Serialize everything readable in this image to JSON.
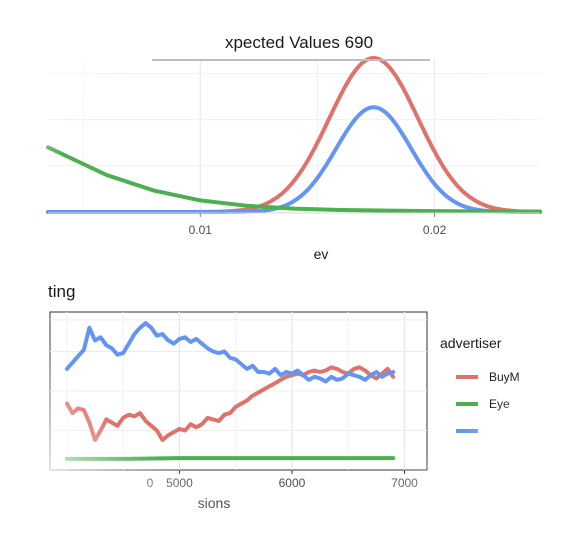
{
  "chart_data": [
    {
      "type": "line",
      "title": "xpected Values 690",
      "xlabel": "ev",
      "ylabel": "",
      "xlim": [
        0.0035,
        0.0245
      ],
      "x_ticks": [
        0.01,
        0.02
      ],
      "x_tick_labels": [
        "0.01",
        "0.02"
      ],
      "grid": true,
      "legend": "none",
      "series": [
        {
          "color": "#E0726C",
          "curve": "normal",
          "mean": 0.0174,
          "sd": 0.0019,
          "peak": 1.0
        },
        {
          "color": "#6495F5",
          "curve": "normal",
          "mean": 0.0174,
          "sd": 0.0016,
          "peak": 0.68
        },
        {
          "color": "#4CAF50",
          "curve": "exponential",
          "x": [
            0.0035,
            0.006,
            0.008,
            0.01,
            0.012,
            0.014,
            0.016,
            0.018,
            0.02,
            0.022,
            0.0245
          ],
          "y": [
            0.42,
            0.24,
            0.14,
            0.075,
            0.04,
            0.022,
            0.013,
            0.009,
            0.006,
            0.004,
            0.003
          ]
        }
      ]
    },
    {
      "type": "line",
      "title": "ting",
      "xlabel": "sions",
      "ylabel": "",
      "xlim": [
        3850,
        7200
      ],
      "ylim": [
        0,
        1
      ],
      "x_ticks": [
        5000,
        6000,
        7000
      ],
      "x_tick_labels": [
        "5000",
        "6000",
        "7000"
      ],
      "partial_tick_label": "0",
      "grid": true,
      "legend": "right",
      "legend_title": "advertiser",
      "series": [
        {
          "name": "BuyM",
          "color": "#E0726C",
          "x": [
            4000,
            4050,
            4100,
            4150,
            4200,
            4250,
            4300,
            4350,
            4400,
            4450,
            4500,
            4550,
            4600,
            4650,
            4700,
            4750,
            4800,
            4850,
            4900,
            4950,
            5000,
            5050,
            5100,
            5150,
            5200,
            5250,
            5300,
            5350,
            5400,
            5450,
            5500,
            5550,
            5600,
            5650,
            5700,
            5750,
            5800,
            5850,
            5900,
            5950,
            6000,
            6050,
            6100,
            6150,
            6200,
            6250,
            6300,
            6350,
            6400,
            6450,
            6500,
            6550,
            6600,
            6650,
            6700,
            6750,
            6800,
            6850,
            6900
          ],
          "y": [
            0.42,
            0.36,
            0.39,
            0.38,
            0.3,
            0.19,
            0.25,
            0.32,
            0.3,
            0.28,
            0.33,
            0.35,
            0.34,
            0.36,
            0.31,
            0.28,
            0.25,
            0.19,
            0.22,
            0.24,
            0.26,
            0.25,
            0.29,
            0.27,
            0.29,
            0.33,
            0.32,
            0.31,
            0.35,
            0.36,
            0.4,
            0.42,
            0.44,
            0.47,
            0.49,
            0.51,
            0.53,
            0.55,
            0.57,
            0.59,
            0.6,
            0.61,
            0.6,
            0.62,
            0.63,
            0.62,
            0.63,
            0.65,
            0.64,
            0.62,
            0.61,
            0.64,
            0.65,
            0.63,
            0.6,
            0.58,
            0.61,
            0.64,
            0.59
          ]
        },
        {
          "name": "Eye",
          "color": "#4CAF50",
          "x": [
            4000,
            4500,
            5000,
            5500,
            6000,
            6500,
            6900
          ],
          "y": [
            0.07,
            0.07,
            0.075,
            0.075,
            0.075,
            0.075,
            0.075
          ]
        },
        {
          "name": "",
          "color": "#6495F5",
          "x": [
            4000,
            4050,
            4100,
            4150,
            4200,
            4250,
            4300,
            4350,
            4400,
            4450,
            4500,
            4550,
            4600,
            4650,
            4700,
            4750,
            4800,
            4850,
            4900,
            4950,
            5000,
            5050,
            5100,
            5150,
            5200,
            5250,
            5300,
            5350,
            5400,
            5450,
            5500,
            5550,
            5600,
            5650,
            5700,
            5750,
            5800,
            5850,
            5900,
            5950,
            6000,
            6050,
            6100,
            6150,
            6200,
            6250,
            6300,
            6350,
            6400,
            6450,
            6500,
            6550,
            6600,
            6650,
            6700,
            6750,
            6800,
            6850,
            6900
          ],
          "y": [
            0.64,
            0.68,
            0.72,
            0.76,
            0.9,
            0.82,
            0.84,
            0.79,
            0.77,
            0.73,
            0.74,
            0.8,
            0.86,
            0.9,
            0.93,
            0.9,
            0.85,
            0.86,
            0.82,
            0.8,
            0.83,
            0.84,
            0.81,
            0.83,
            0.8,
            0.77,
            0.75,
            0.74,
            0.75,
            0.71,
            0.7,
            0.67,
            0.64,
            0.66,
            0.62,
            0.62,
            0.61,
            0.64,
            0.6,
            0.62,
            0.61,
            0.63,
            0.6,
            0.57,
            0.59,
            0.58,
            0.56,
            0.59,
            0.57,
            0.58,
            0.61,
            0.6,
            0.59,
            0.57,
            0.6,
            0.62,
            0.59,
            0.61,
            0.62
          ]
        }
      ]
    }
  ]
}
